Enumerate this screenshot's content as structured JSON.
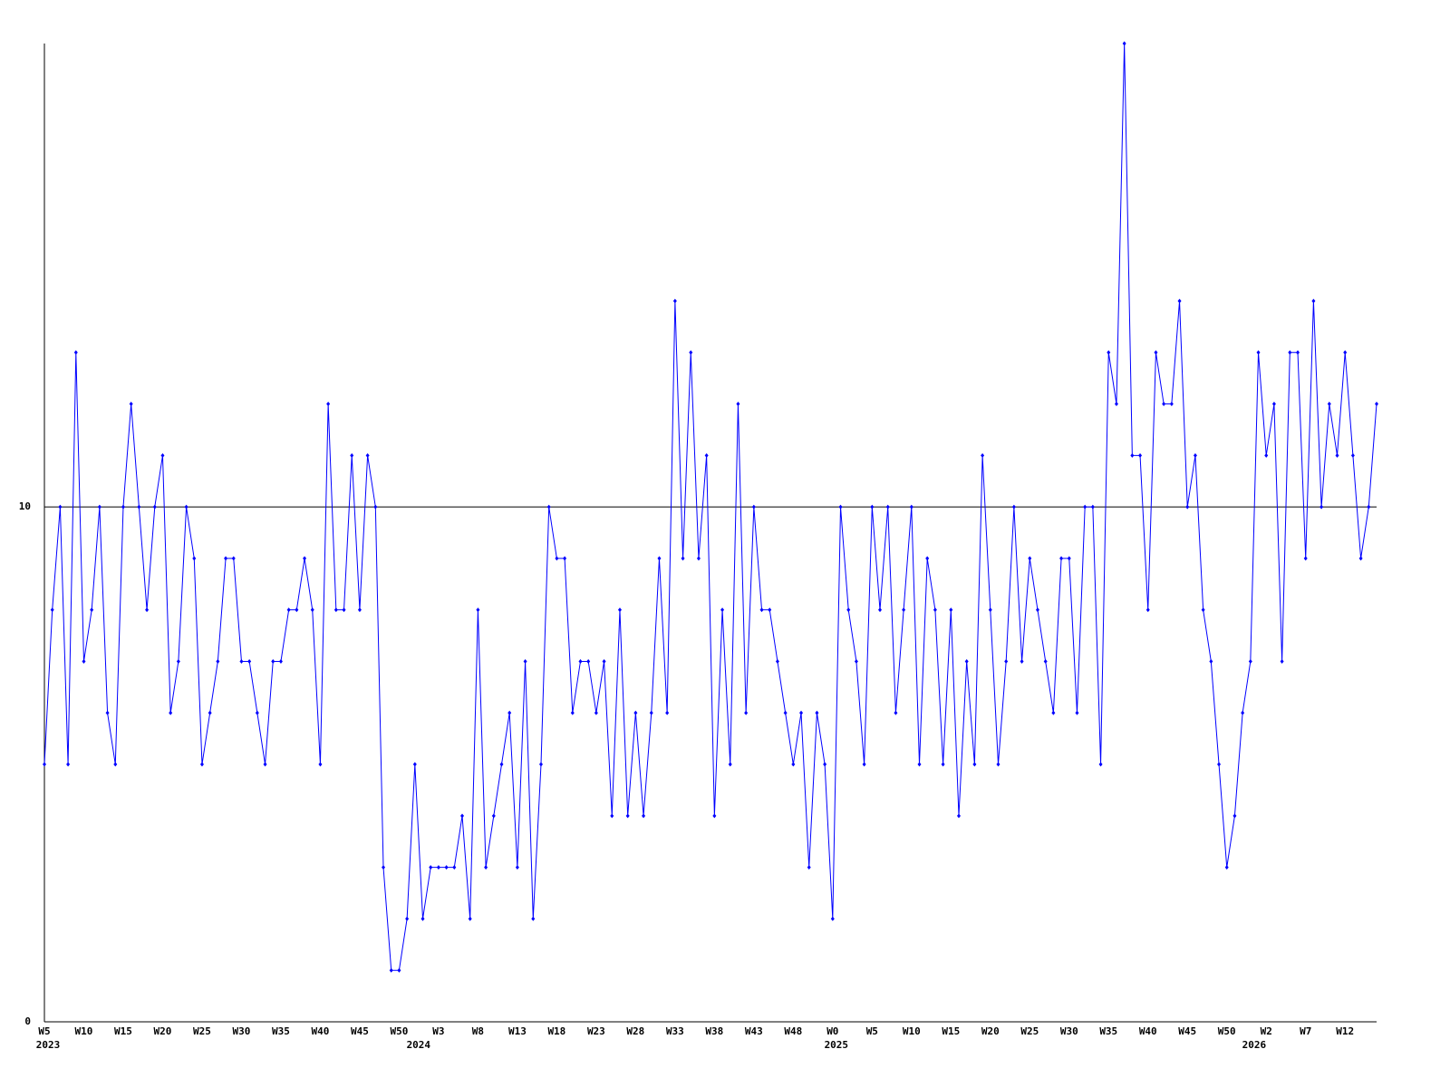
{
  "chart_data": {
    "type": "line",
    "categories": [
      "W5",
      null,
      null,
      null,
      null,
      "W10",
      null,
      null,
      null,
      null,
      "W15",
      null,
      null,
      null,
      null,
      "W20",
      null,
      null,
      null,
      null,
      "W25",
      null,
      null,
      null,
      null,
      "W30",
      null,
      null,
      null,
      null,
      "W35",
      null,
      null,
      null,
      null,
      "W40",
      null,
      null,
      null,
      null,
      "W45",
      null,
      null,
      null,
      null,
      "W50",
      null,
      null,
      null,
      null,
      "W3",
      null,
      null,
      null,
      null,
      "W8",
      null,
      null,
      null,
      null,
      "W13",
      null,
      null,
      null,
      null,
      "W18",
      null,
      null,
      null,
      null,
      "W23",
      null,
      null,
      null,
      null,
      "W28",
      null,
      null,
      null,
      null,
      "W33",
      null,
      null,
      null,
      null,
      "W38",
      null,
      null,
      null,
      null,
      "W43",
      null,
      null,
      null,
      null,
      "W48",
      null,
      null,
      null,
      null,
      "W0",
      null,
      null,
      null,
      null,
      "W5",
      null,
      null,
      null,
      null,
      "W10",
      null,
      null,
      null,
      null,
      "W15",
      null,
      null,
      null,
      null,
      "W20",
      null,
      null,
      null,
      null,
      "W25",
      null,
      null,
      null,
      null,
      "W30",
      null,
      null,
      null,
      null,
      "W35",
      null,
      null,
      null,
      null,
      "W40",
      null,
      null,
      null,
      null,
      "W45",
      null,
      null,
      null,
      null,
      "W50",
      null,
      null,
      null,
      null,
      "W2",
      null,
      null,
      null,
      null,
      "W7",
      null,
      null,
      null,
      null,
      "W12",
      null,
      null,
      null,
      null
    ],
    "year_categories": [
      "2023",
      null,
      null,
      null,
      null,
      null,
      null,
      null,
      null,
      null,
      null,
      null,
      null,
      null,
      null,
      null,
      null,
      null,
      null,
      null,
      null,
      null,
      null,
      null,
      null,
      null,
      null,
      null,
      null,
      null,
      null,
      null,
      null,
      null,
      null,
      null,
      null,
      null,
      null,
      null,
      null,
      null,
      null,
      null,
      null,
      null,
      null,
      "2024",
      null,
      null,
      null,
      null,
      null,
      null,
      null,
      null,
      null,
      null,
      null,
      null,
      null,
      null,
      null,
      null,
      null,
      null,
      null,
      null,
      null,
      null,
      null,
      null,
      null,
      null,
      null,
      null,
      null,
      null,
      null,
      null,
      null,
      null,
      null,
      null,
      null,
      null,
      null,
      null,
      null,
      null,
      null,
      null,
      null,
      null,
      null,
      null,
      null,
      null,
      null,
      null,
      "2025",
      null,
      null,
      null,
      null,
      null,
      null,
      null,
      null,
      null,
      null,
      null,
      null,
      null,
      null,
      null,
      null,
      null,
      null,
      null,
      null,
      null,
      null,
      null,
      null,
      null,
      null,
      null,
      null,
      null,
      null,
      null,
      null,
      null,
      null,
      null,
      null,
      null,
      null,
      null,
      null,
      null,
      null,
      null,
      null,
      null,
      null,
      null,
      null,
      null,
      null,
      null,
      null,
      "2026",
      null,
      null,
      null,
      null,
      null,
      null,
      null,
      null,
      null,
      null,
      null,
      null,
      null,
      null,
      null,
      null
    ],
    "series": [
      {
        "color": "#0000ff",
        "values": [
          5,
          8,
          10,
          5,
          13,
          7,
          8,
          10,
          6,
          5,
          10,
          12,
          10,
          8,
          10,
          11,
          6,
          7,
          10,
          9,
          5,
          6,
          7,
          9,
          9,
          7,
          7,
          6,
          5,
          7,
          7,
          8,
          8,
          9,
          8,
          5,
          12,
          8,
          8,
          11,
          8,
          11,
          10,
          3,
          1,
          1,
          2,
          5,
          2,
          3,
          3,
          3,
          3,
          4,
          2,
          8,
          3,
          4,
          5,
          6,
          3,
          7,
          2,
          5,
          10,
          9,
          9,
          6,
          7,
          7,
          6,
          7,
          4,
          8,
          4,
          6,
          4,
          6,
          9,
          6,
          14,
          9,
          13,
          9,
          11,
          4,
          8,
          5,
          12,
          6,
          10,
          8,
          8,
          7,
          6,
          5,
          6,
          3,
          6,
          5,
          2,
          10,
          8,
          7,
          5,
          10,
          8,
          10,
          6,
          8,
          10,
          5,
          9,
          8,
          5,
          8,
          4,
          7,
          5,
          11,
          8,
          5,
          7,
          10,
          7,
          9,
          8,
          7,
          6,
          9,
          9,
          6,
          10,
          10,
          5,
          13,
          12,
          19,
          11,
          11,
          8,
          13,
          12,
          12,
          14,
          10,
          11,
          8,
          7,
          5,
          3,
          4,
          6,
          7,
          13,
          11,
          12,
          7,
          13,
          13,
          9,
          14,
          10,
          12,
          11,
          13,
          11,
          9,
          10,
          12
        ]
      }
    ],
    "ylim": [
      0,
      19
    ],
    "yticks": [
      0,
      10
    ],
    "grid": true
  }
}
